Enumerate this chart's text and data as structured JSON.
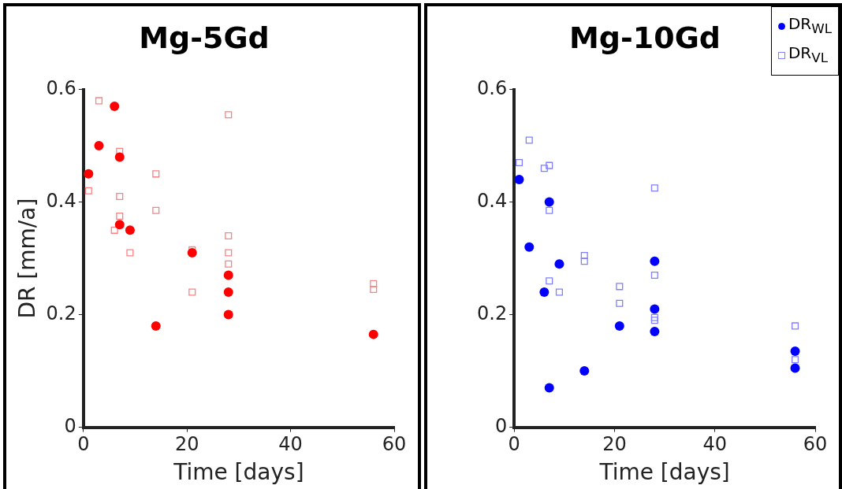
{
  "chart_data": [
    {
      "type": "scatter",
      "title": "Mg-5Gd",
      "xlabel": "Time [days]",
      "ylabel": "DR [mm/a]",
      "xlim": [
        0,
        60
      ],
      "xticks": [
        0,
        20,
        40,
        60
      ],
      "ylim": [
        0,
        0.6
      ],
      "yticks": [
        0,
        0.2,
        0.4,
        0.6
      ],
      "grid": false,
      "series": [
        {
          "color": "#ff0000",
          "marker": "circle",
          "x": [
            1,
            3,
            6,
            7,
            7,
            9,
            14,
            21,
            28,
            28,
            28,
            56
          ],
          "values": [
            0.45,
            0.5,
            0.57,
            0.48,
            0.36,
            0.35,
            0.18,
            0.31,
            0.27,
            0.24,
            0.2,
            0.165
          ]
        },
        {
          "color": "#ff8080",
          "marker": "square",
          "x": [
            1,
            3,
            7,
            7,
            7,
            6,
            9,
            14,
            14,
            21,
            21,
            28,
            28,
            28,
            28,
            56,
            56
          ],
          "values": [
            0.42,
            0.58,
            0.49,
            0.41,
            0.375,
            0.35,
            0.31,
            0.45,
            0.385,
            0.315,
            0.24,
            0.555,
            0.34,
            0.31,
            0.29,
            0.255,
            0.245
          ]
        }
      ]
    },
    {
      "type": "scatter",
      "title": "Mg-10Gd",
      "xlabel": "Time [days]",
      "xlim": [
        0,
        60
      ],
      "xticks": [
        0,
        20,
        40,
        60
      ],
      "ylim": [
        0,
        0.6
      ],
      "yticks": [
        0,
        0.2,
        0.4,
        0.6
      ],
      "grid": false,
      "legend": "top right",
      "series": [
        {
          "name": "DR$_{WL}$",
          "color": "#0000ff",
          "marker": "circle",
          "x": [
            1,
            3,
            6,
            7,
            7,
            9,
            14,
            21,
            28,
            28,
            28,
            56,
            56
          ],
          "values": [
            0.44,
            0.32,
            0.24,
            0.4,
            0.07,
            0.29,
            0.1,
            0.18,
            0.295,
            0.21,
            0.17,
            0.135,
            0.105
          ]
        },
        {
          "name": "DR$_{VL}$",
          "color": "#8080ff",
          "marker": "square",
          "x": [
            1,
            3,
            6,
            7,
            7,
            7,
            9,
            14,
            14,
            21,
            21,
            28,
            28,
            28,
            28,
            56,
            56
          ],
          "values": [
            0.47,
            0.51,
            0.46,
            0.465,
            0.385,
            0.26,
            0.24,
            0.305,
            0.295,
            0.25,
            0.22,
            0.425,
            0.27,
            0.195,
            0.19,
            0.18,
            0.12
          ]
        }
      ]
    }
  ]
}
